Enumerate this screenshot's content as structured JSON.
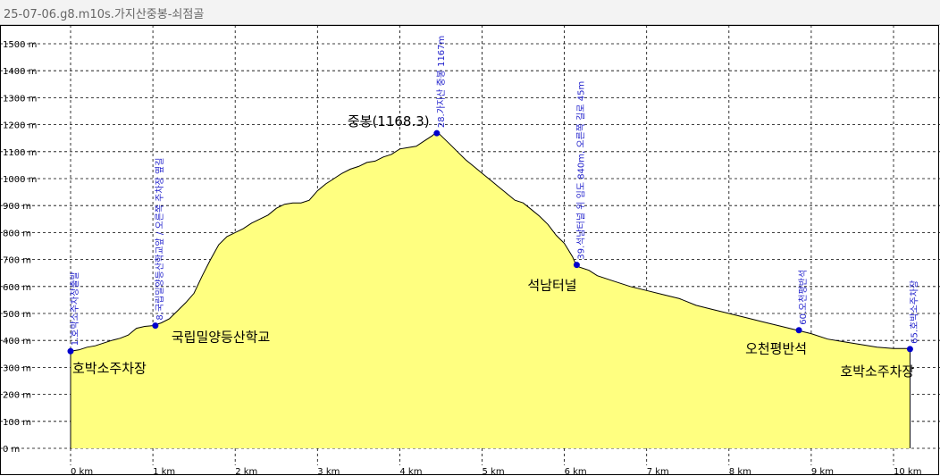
{
  "window": {
    "title": "25-07-06.g8.m10s.가지산중봉-쇠점골"
  },
  "chart_data": {
    "type": "area",
    "fill_color": "#ffff80",
    "line_color": "#000000",
    "marker_color": "#0000cc",
    "grid": true,
    "xlim": [
      0,
      10.3
    ],
    "ylim": [
      0,
      1600
    ],
    "x_ticks": [
      {
        "value": 0,
        "label": "0 km"
      },
      {
        "value": 1,
        "label": "1 km"
      },
      {
        "value": 2,
        "label": "2 km"
      },
      {
        "value": 3,
        "label": "3 km"
      },
      {
        "value": 4,
        "label": "4 km"
      },
      {
        "value": 5,
        "label": "5 km"
      },
      {
        "value": 6,
        "label": "6 km"
      },
      {
        "value": 7,
        "label": "7 km"
      },
      {
        "value": 8,
        "label": "8 km"
      },
      {
        "value": 9,
        "label": "9 km"
      },
      {
        "value": 10,
        "label": "10 km"
      }
    ],
    "y_ticks": [
      {
        "value": 0,
        "label": "0 m"
      },
      {
        "value": 100,
        "label": "100 m"
      },
      {
        "value": 200,
        "label": "200 m"
      },
      {
        "value": 300,
        "label": "300 m"
      },
      {
        "value": 400,
        "label": "400 m"
      },
      {
        "value": 500,
        "label": "500 m"
      },
      {
        "value": 600,
        "label": "600 m"
      },
      {
        "value": 700,
        "label": "700 m"
      },
      {
        "value": 800,
        "label": "800 m"
      },
      {
        "value": 900,
        "label": "900 m"
      },
      {
        "value": 1000,
        "label": "1000 m"
      },
      {
        "value": 1100,
        "label": "1100 m"
      },
      {
        "value": 1200,
        "label": "1200 m"
      },
      {
        "value": 1300,
        "label": "1300 m"
      },
      {
        "value": 1400,
        "label": "1400 m"
      },
      {
        "value": 1500,
        "label": "1500 m"
      }
    ],
    "profile": [
      [
        0,
        360
      ],
      [
        0.1,
        365
      ],
      [
        0.2,
        375
      ],
      [
        0.3,
        380
      ],
      [
        0.4,
        390
      ],
      [
        0.5,
        400
      ],
      [
        0.6,
        408
      ],
      [
        0.7,
        420
      ],
      [
        0.8,
        445
      ],
      [
        0.9,
        452
      ],
      [
        1.0,
        455
      ],
      [
        1.1,
        465
      ],
      [
        1.2,
        480
      ],
      [
        1.3,
        510
      ],
      [
        1.4,
        540
      ],
      [
        1.5,
        575
      ],
      [
        1.6,
        640
      ],
      [
        1.7,
        700
      ],
      [
        1.8,
        755
      ],
      [
        1.9,
        785
      ],
      [
        2.0,
        800
      ],
      [
        2.1,
        815
      ],
      [
        2.2,
        835
      ],
      [
        2.3,
        850
      ],
      [
        2.4,
        865
      ],
      [
        2.5,
        890
      ],
      [
        2.6,
        905
      ],
      [
        2.7,
        910
      ],
      [
        2.8,
        910
      ],
      [
        2.9,
        920
      ],
      [
        3.0,
        955
      ],
      [
        3.1,
        980
      ],
      [
        3.2,
        1000
      ],
      [
        3.3,
        1020
      ],
      [
        3.4,
        1035
      ],
      [
        3.5,
        1045
      ],
      [
        3.6,
        1060
      ],
      [
        3.7,
        1065
      ],
      [
        3.8,
        1080
      ],
      [
        3.9,
        1090
      ],
      [
        4.0,
        1110
      ],
      [
        4.1,
        1115
      ],
      [
        4.2,
        1120
      ],
      [
        4.3,
        1140
      ],
      [
        4.4,
        1160
      ],
      [
        4.45,
        1175
      ],
      [
        4.5,
        1160
      ],
      [
        4.6,
        1130
      ],
      [
        4.7,
        1100
      ],
      [
        4.8,
        1070
      ],
      [
        4.9,
        1045
      ],
      [
        5.0,
        1020
      ],
      [
        5.1,
        995
      ],
      [
        5.2,
        970
      ],
      [
        5.3,
        945
      ],
      [
        5.4,
        920
      ],
      [
        5.5,
        910
      ],
      [
        5.6,
        885
      ],
      [
        5.7,
        860
      ],
      [
        5.8,
        830
      ],
      [
        5.9,
        790
      ],
      [
        6.0,
        760
      ],
      [
        6.1,
        710
      ],
      [
        6.15,
        675
      ],
      [
        6.3,
        660
      ],
      [
        6.4,
        640
      ],
      [
        6.6,
        620
      ],
      [
        6.8,
        600
      ],
      [
        7.0,
        585
      ],
      [
        7.2,
        570
      ],
      [
        7.4,
        555
      ],
      [
        7.6,
        530
      ],
      [
        7.8,
        515
      ],
      [
        8.0,
        500
      ],
      [
        8.2,
        485
      ],
      [
        8.4,
        470
      ],
      [
        8.6,
        455
      ],
      [
        8.8,
        440
      ],
      [
        9.0,
        425
      ],
      [
        9.2,
        405
      ],
      [
        9.4,
        395
      ],
      [
        9.6,
        385
      ],
      [
        9.8,
        375
      ],
      [
        10.0,
        370
      ],
      [
        10.1,
        370
      ],
      [
        10.2,
        370
      ]
    ],
    "waypoints": [
      {
        "x": 0,
        "elev": 360,
        "tag": "1.호박소주차장출발",
        "name": "호박소주차장"
      },
      {
        "x": 1.03,
        "elev": 455,
        "tag": "8.국립밀양등산학교앞 / 오른쪽 주차장 옆길",
        "name": "국립밀양등산학교"
      },
      {
        "x": 4.45,
        "elev": 1168.3,
        "tag": "28.가지산 중봉 1167m",
        "name": "중봉(1168.3)"
      },
      {
        "x": 6.15,
        "elev": 680,
        "tag": "39.석남터널 위 임도 840m, 오른쪽 길로 45m",
        "name": "석남터널"
      },
      {
        "x": 8.85,
        "elev": 438,
        "tag": "60.오천평반석",
        "name": "오천평반석"
      },
      {
        "x": 10.2,
        "elev": 368,
        "tag": "65.호박소주차장",
        "name": "호박소주차장"
      }
    ]
  }
}
